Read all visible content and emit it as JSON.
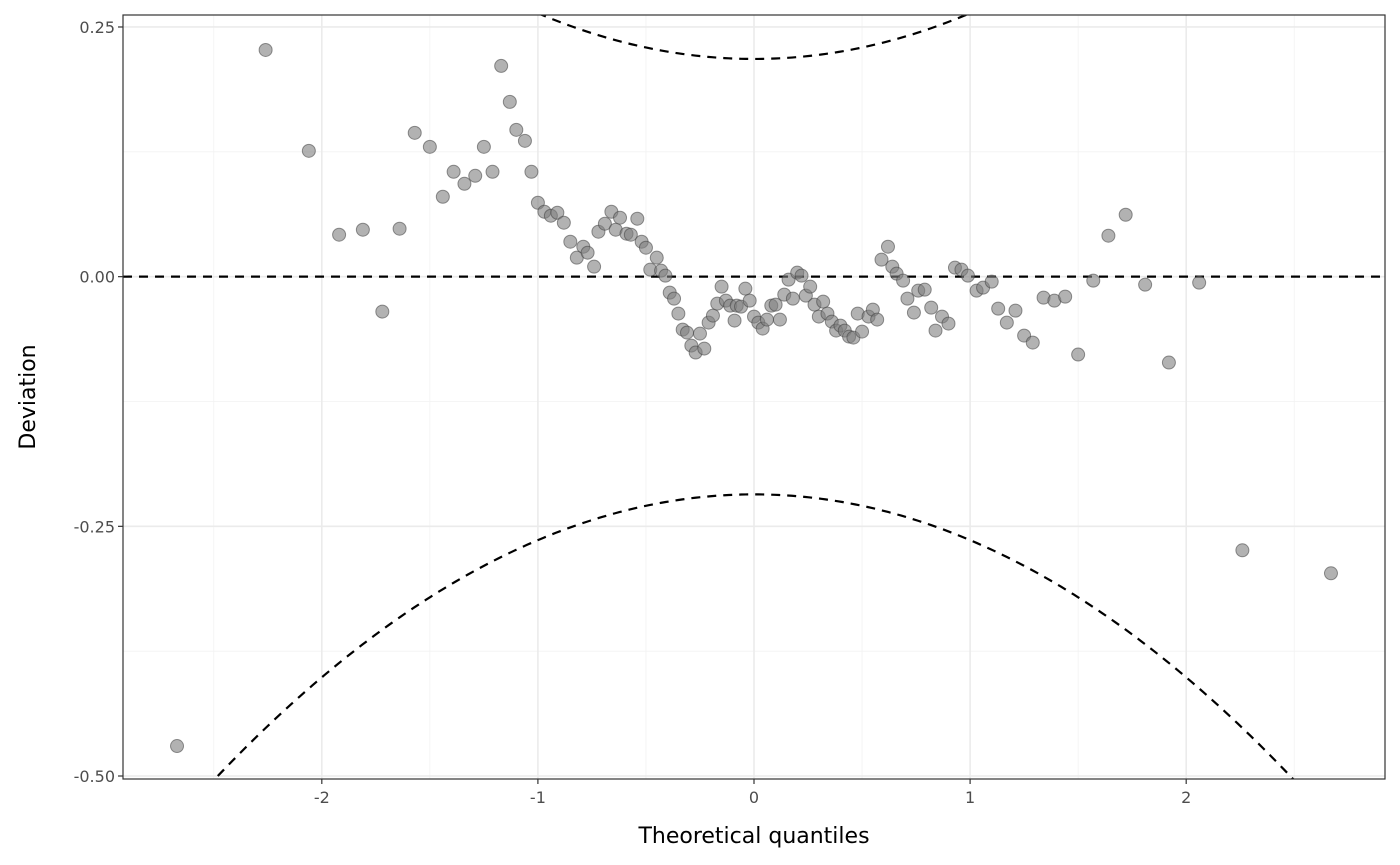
{
  "chart_data": {
    "type": "scatter",
    "title": "",
    "xlabel": "Theoretical quantiles",
    "ylabel": "Deviation",
    "xlim": [
      -2.92,
      2.92
    ],
    "ylim": [
      -0.503,
      0.262
    ],
    "x_ticks": [
      -2,
      -1,
      0,
      1,
      2
    ],
    "x_tick_labels": [
      "-2",
      "-1",
      "0",
      "1",
      "2"
    ],
    "y_ticks": [
      -0.5,
      -0.25,
      0,
      0.25
    ],
    "y_tick_labels": [
      "-0.50",
      "-0.25",
      "0.00",
      "0.25"
    ],
    "grid": true,
    "reference_line": {
      "y": 0,
      "style": "dashed"
    },
    "confidence_band": {
      "style": "dashed",
      "half_width_at_zero": 0.218,
      "curvature": 0.0458
    },
    "point_color": "#7f7f7f",
    "points": [
      {
        "x": -2.67,
        "y": -0.47
      },
      {
        "x": -2.26,
        "y": 0.227
      },
      {
        "x": -2.06,
        "y": 0.126
      },
      {
        "x": -1.92,
        "y": 0.042
      },
      {
        "x": -1.81,
        "y": 0.047
      },
      {
        "x": -1.72,
        "y": -0.035
      },
      {
        "x": -1.64,
        "y": 0.048
      },
      {
        "x": -1.57,
        "y": 0.144
      },
      {
        "x": -1.5,
        "y": 0.13
      },
      {
        "x": -1.44,
        "y": 0.08
      },
      {
        "x": -1.39,
        "y": 0.105
      },
      {
        "x": -1.34,
        "y": 0.093
      },
      {
        "x": -1.29,
        "y": 0.101
      },
      {
        "x": -1.25,
        "y": 0.13
      },
      {
        "x": -1.21,
        "y": 0.105
      },
      {
        "x": -1.17,
        "y": 0.211
      },
      {
        "x": -1.13,
        "y": 0.175
      },
      {
        "x": -1.1,
        "y": 0.147
      },
      {
        "x": -1.06,
        "y": 0.136
      },
      {
        "x": -1.03,
        "y": 0.105
      },
      {
        "x": -1.0,
        "y": 0.074
      },
      {
        "x": -0.97,
        "y": 0.065
      },
      {
        "x": -0.94,
        "y": 0.061
      },
      {
        "x": -0.91,
        "y": 0.064
      },
      {
        "x": -0.88,
        "y": 0.054
      },
      {
        "x": -0.85,
        "y": 0.035
      },
      {
        "x": -0.82,
        "y": 0.019
      },
      {
        "x": -0.79,
        "y": 0.03
      },
      {
        "x": -0.77,
        "y": 0.024
      },
      {
        "x": -0.74,
        "y": 0.01
      },
      {
        "x": -0.72,
        "y": 0.045
      },
      {
        "x": -0.69,
        "y": 0.053
      },
      {
        "x": -0.66,
        "y": 0.065
      },
      {
        "x": -0.64,
        "y": 0.047
      },
      {
        "x": -0.62,
        "y": 0.059
      },
      {
        "x": -0.59,
        "y": 0.043
      },
      {
        "x": -0.57,
        "y": 0.042
      },
      {
        "x": -0.54,
        "y": 0.058
      },
      {
        "x": -0.52,
        "y": 0.035
      },
      {
        "x": -0.5,
        "y": 0.029
      },
      {
        "x": -0.48,
        "y": 0.007
      },
      {
        "x": -0.45,
        "y": 0.019
      },
      {
        "x": -0.43,
        "y": 0.006
      },
      {
        "x": -0.41,
        "y": 0.001
      },
      {
        "x": -0.39,
        "y": -0.016
      },
      {
        "x": -0.37,
        "y": -0.022
      },
      {
        "x": -0.35,
        "y": -0.037
      },
      {
        "x": -0.33,
        "y": -0.053
      },
      {
        "x": -0.31,
        "y": -0.056
      },
      {
        "x": -0.29,
        "y": -0.069
      },
      {
        "x": -0.27,
        "y": -0.076
      },
      {
        "x": -0.25,
        "y": -0.057
      },
      {
        "x": -0.23,
        "y": -0.072
      },
      {
        "x": -0.21,
        "y": -0.046
      },
      {
        "x": -0.19,
        "y": -0.039
      },
      {
        "x": -0.17,
        "y": -0.027
      },
      {
        "x": -0.15,
        "y": -0.01
      },
      {
        "x": -0.13,
        "y": -0.024
      },
      {
        "x": -0.11,
        "y": -0.029
      },
      {
        "x": -0.09,
        "y": -0.044
      },
      {
        "x": -0.08,
        "y": -0.029
      },
      {
        "x": -0.06,
        "y": -0.03
      },
      {
        "x": -0.04,
        "y": -0.012
      },
      {
        "x": -0.02,
        "y": -0.024
      },
      {
        "x": 0.0,
        "y": -0.04
      },
      {
        "x": 0.02,
        "y": -0.046
      },
      {
        "x": 0.04,
        "y": -0.052
      },
      {
        "x": 0.06,
        "y": -0.043
      },
      {
        "x": 0.08,
        "y": -0.029
      },
      {
        "x": 0.1,
        "y": -0.028
      },
      {
        "x": 0.12,
        "y": -0.043
      },
      {
        "x": 0.14,
        "y": -0.018
      },
      {
        "x": 0.16,
        "y": -0.003
      },
      {
        "x": 0.18,
        "y": -0.022
      },
      {
        "x": 0.2,
        "y": 0.004
      },
      {
        "x": 0.22,
        "y": 0.001
      },
      {
        "x": 0.24,
        "y": -0.019
      },
      {
        "x": 0.26,
        "y": -0.01
      },
      {
        "x": 0.28,
        "y": -0.028
      },
      {
        "x": 0.3,
        "y": -0.04
      },
      {
        "x": 0.32,
        "y": -0.025
      },
      {
        "x": 0.34,
        "y": -0.037
      },
      {
        "x": 0.36,
        "y": -0.045
      },
      {
        "x": 0.38,
        "y": -0.054
      },
      {
        "x": 0.4,
        "y": -0.049
      },
      {
        "x": 0.42,
        "y": -0.054
      },
      {
        "x": 0.44,
        "y": -0.06
      },
      {
        "x": 0.46,
        "y": -0.061
      },
      {
        "x": 0.48,
        "y": -0.037
      },
      {
        "x": 0.5,
        "y": -0.055
      },
      {
        "x": 0.53,
        "y": -0.04
      },
      {
        "x": 0.55,
        "y": -0.033
      },
      {
        "x": 0.57,
        "y": -0.043
      },
      {
        "x": 0.59,
        "y": 0.017
      },
      {
        "x": 0.62,
        "y": 0.03
      },
      {
        "x": 0.64,
        "y": 0.01
      },
      {
        "x": 0.66,
        "y": 0.003
      },
      {
        "x": 0.69,
        "y": -0.004
      },
      {
        "x": 0.71,
        "y": -0.022
      },
      {
        "x": 0.74,
        "y": -0.036
      },
      {
        "x": 0.76,
        "y": -0.014
      },
      {
        "x": 0.79,
        "y": -0.013
      },
      {
        "x": 0.82,
        "y": -0.031
      },
      {
        "x": 0.84,
        "y": -0.054
      },
      {
        "x": 0.87,
        "y": -0.04
      },
      {
        "x": 0.9,
        "y": -0.047
      },
      {
        "x": 0.93,
        "y": 0.009
      },
      {
        "x": 0.96,
        "y": 0.007
      },
      {
        "x": 0.99,
        "y": 0.001
      },
      {
        "x": 1.03,
        "y": -0.014
      },
      {
        "x": 1.06,
        "y": -0.011
      },
      {
        "x": 1.1,
        "y": -0.005
      },
      {
        "x": 1.13,
        "y": -0.032
      },
      {
        "x": 1.17,
        "y": -0.046
      },
      {
        "x": 1.21,
        "y": -0.034
      },
      {
        "x": 1.25,
        "y": -0.059
      },
      {
        "x": 1.29,
        "y": -0.066
      },
      {
        "x": 1.34,
        "y": -0.021
      },
      {
        "x": 1.39,
        "y": -0.024
      },
      {
        "x": 1.44,
        "y": -0.02
      },
      {
        "x": 1.5,
        "y": -0.078
      },
      {
        "x": 1.57,
        "y": -0.004
      },
      {
        "x": 1.64,
        "y": 0.041
      },
      {
        "x": 1.72,
        "y": 0.062
      },
      {
        "x": 1.81,
        "y": -0.008
      },
      {
        "x": 1.92,
        "y": -0.086
      },
      {
        "x": 2.06,
        "y": -0.006
      },
      {
        "x": 2.26,
        "y": -0.274
      },
      {
        "x": 2.67,
        "y": -0.297
      }
    ]
  }
}
